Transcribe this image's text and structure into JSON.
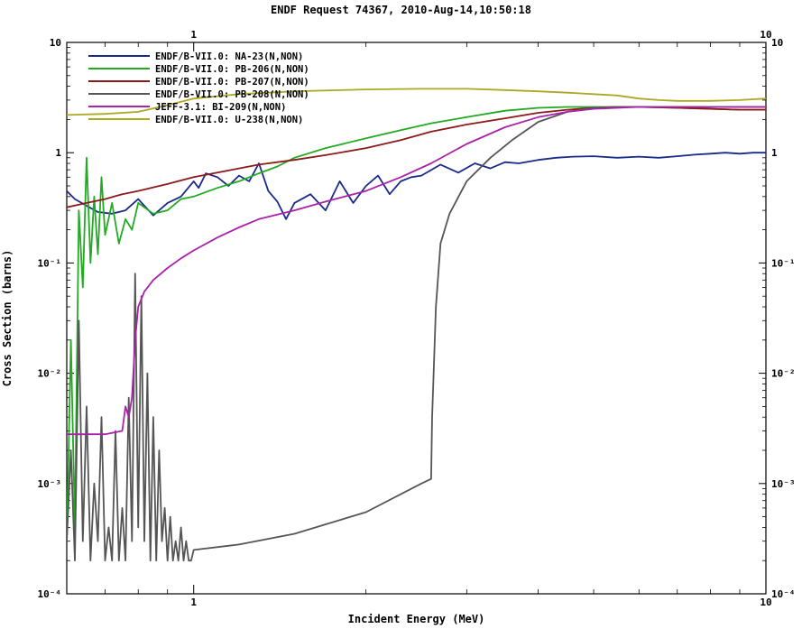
{
  "chart_data": {
    "type": "line",
    "title": "ENDF Request 74367, 2010-Aug-14,10:50:18",
    "xlabel": "Incident Energy (MeV)",
    "ylabel": "Cross Section (barns)",
    "xscale": "log",
    "yscale": "log",
    "xlim": [
      0.6,
      10
    ],
    "ylim": [
      0.0001,
      10
    ],
    "x_tick_labels": [
      "1",
      "10"
    ],
    "y_tick_labels": [
      "10",
      "1",
      "10⁻¹",
      "10⁻²",
      "10⁻³",
      "10⁻⁴"
    ],
    "legend_position": "top-left",
    "series": [
      {
        "name": "ENDF/B-VII.0: NA-23(N,NON)",
        "color": "#1a2a8c",
        "x": [
          0.6,
          0.62,
          0.65,
          0.68,
          0.72,
          0.76,
          0.8,
          0.85,
          0.9,
          0.95,
          1.0,
          1.02,
          1.05,
          1.1,
          1.15,
          1.2,
          1.25,
          1.3,
          1.35,
          1.4,
          1.45,
          1.5,
          1.6,
          1.7,
          1.8,
          1.9,
          2.0,
          2.1,
          2.2,
          2.3,
          2.4,
          2.5,
          2.7,
          2.9,
          3.1,
          3.3,
          3.5,
          3.7,
          4.0,
          4.3,
          4.6,
          5.0,
          5.5,
          6.0,
          6.5,
          7.0,
          7.5,
          8.0,
          8.5,
          9.0,
          9.5,
          10.0
        ],
        "y": [
          0.45,
          0.38,
          0.33,
          0.29,
          0.28,
          0.3,
          0.38,
          0.27,
          0.35,
          0.4,
          0.55,
          0.48,
          0.65,
          0.6,
          0.5,
          0.62,
          0.55,
          0.8,
          0.45,
          0.36,
          0.25,
          0.35,
          0.42,
          0.3,
          0.55,
          0.35,
          0.5,
          0.62,
          0.42,
          0.55,
          0.6,
          0.62,
          0.78,
          0.66,
          0.8,
          0.72,
          0.82,
          0.8,
          0.86,
          0.9,
          0.92,
          0.93,
          0.9,
          0.92,
          0.9,
          0.93,
          0.96,
          0.98,
          1.0,
          0.98,
          1.0,
          1.0
        ]
      },
      {
        "name": "ENDF/B-VII.0: PB-206(N,NON)",
        "color": "#22aa22",
        "x": [
          0.6,
          0.61,
          0.62,
          0.63,
          0.64,
          0.65,
          0.66,
          0.67,
          0.68,
          0.69,
          0.7,
          0.72,
          0.74,
          0.76,
          0.78,
          0.8,
          0.85,
          0.9,
          0.95,
          1.0,
          1.1,
          1.2,
          1.3,
          1.4,
          1.5,
          1.7,
          2.0,
          2.3,
          2.6,
          3.0,
          3.5,
          4.0,
          4.5,
          5.0,
          6.0,
          7.0,
          8.0,
          9.0,
          10.0
        ],
        "y": [
          0.0003,
          0.02,
          0.0004,
          0.3,
          0.06,
          0.9,
          0.1,
          0.4,
          0.12,
          0.6,
          0.18,
          0.35,
          0.15,
          0.25,
          0.2,
          0.35,
          0.28,
          0.3,
          0.38,
          0.4,
          0.48,
          0.55,
          0.65,
          0.75,
          0.9,
          1.1,
          1.35,
          1.6,
          1.85,
          2.1,
          2.4,
          2.55,
          2.6,
          2.6,
          2.6,
          2.55,
          2.5,
          2.45,
          2.45
        ]
      },
      {
        "name": "ENDF/B-VII.0: PB-207(N,NON)",
        "color": "#8c1a1a",
        "x": [
          0.6,
          0.65,
          0.7,
          0.75,
          0.8,
          0.9,
          1.0,
          1.1,
          1.2,
          1.3,
          1.5,
          1.7,
          2.0,
          2.3,
          2.6,
          3.0,
          3.5,
          4.0,
          4.5,
          5.0,
          5.5,
          6.0,
          7.0,
          8.0,
          9.0,
          10.0
        ],
        "y": [
          0.32,
          0.35,
          0.38,
          0.42,
          0.45,
          0.52,
          0.6,
          0.66,
          0.72,
          0.78,
          0.86,
          0.95,
          1.1,
          1.3,
          1.55,
          1.8,
          2.05,
          2.3,
          2.45,
          2.55,
          2.6,
          2.6,
          2.55,
          2.5,
          2.45,
          2.45
        ]
      },
      {
        "name": "ENDF/B-VII.0: PB-208(N,NON)",
        "color": "#555555",
        "x": [
          0.6,
          0.61,
          0.62,
          0.63,
          0.64,
          0.65,
          0.66,
          0.67,
          0.68,
          0.69,
          0.7,
          0.71,
          0.72,
          0.73,
          0.74,
          0.75,
          0.76,
          0.77,
          0.78,
          0.79,
          0.8,
          0.81,
          0.82,
          0.83,
          0.84,
          0.85,
          0.86,
          0.87,
          0.88,
          0.89,
          0.9,
          0.91,
          0.92,
          0.93,
          0.94,
          0.95,
          0.96,
          0.97,
          0.98,
          0.99,
          1.0,
          1.2,
          1.5,
          2.0,
          2.5,
          2.6,
          2.61,
          2.65,
          2.7,
          2.8,
          3.0,
          3.3,
          3.6,
          4.0,
          4.5,
          5.0,
          5.5,
          6.0,
          7.0,
          8.0,
          9.0,
          10.0
        ],
        "y": [
          0.0003,
          0.002,
          0.0002,
          0.03,
          0.0003,
          0.005,
          0.0002,
          0.001,
          0.0003,
          0.004,
          0.0002,
          0.0004,
          0.0002,
          0.003,
          0.0002,
          0.0006,
          0.0002,
          0.006,
          0.0003,
          0.08,
          0.0004,
          0.05,
          0.0003,
          0.01,
          0.0002,
          0.004,
          0.0002,
          0.002,
          0.0003,
          0.0006,
          0.0002,
          0.0005,
          0.0002,
          0.0003,
          0.0002,
          0.0004,
          0.0002,
          0.0003,
          0.0002,
          0.0002,
          0.00025,
          0.00028,
          0.00035,
          0.00055,
          0.001,
          0.0011,
          0.004,
          0.04,
          0.15,
          0.28,
          0.55,
          0.9,
          1.3,
          1.9,
          2.35,
          2.55,
          2.6,
          2.6,
          2.6,
          2.6,
          2.6,
          2.6
        ]
      },
      {
        "name": "JEFF-3.1: BI-209(N,NON)",
        "color": "#aa22aa",
        "x": [
          0.6,
          0.65,
          0.7,
          0.75,
          0.76,
          0.77,
          0.78,
          0.79,
          0.8,
          0.82,
          0.85,
          0.9,
          0.95,
          1.0,
          1.1,
          1.2,
          1.3,
          1.5,
          1.7,
          2.0,
          2.3,
          2.6,
          3.0,
          3.5,
          4.0,
          4.5,
          5.0,
          6.0,
          7.0,
          8.0,
          9.0,
          10.0
        ],
        "y": [
          0.0028,
          0.0028,
          0.0028,
          0.003,
          0.005,
          0.004,
          0.006,
          0.02,
          0.04,
          0.055,
          0.07,
          0.09,
          0.11,
          0.13,
          0.17,
          0.21,
          0.25,
          0.3,
          0.36,
          0.45,
          0.6,
          0.8,
          1.2,
          1.7,
          2.1,
          2.35,
          2.5,
          2.6,
          2.6,
          2.6,
          2.6,
          2.6
        ]
      },
      {
        "name": "ENDF/B-VII.0: U-238(N,NON)",
        "color": "#aaaa22",
        "x": [
          0.6,
          0.7,
          0.8,
          0.9,
          1.0,
          1.2,
          1.5,
          2.0,
          2.5,
          3.0,
          3.5,
          4.0,
          4.5,
          5.0,
          5.5,
          6.0,
          6.5,
          7.0,
          8.0,
          9.0,
          10.0
        ],
        "y": [
          2.2,
          2.25,
          2.35,
          2.7,
          3.1,
          3.4,
          3.6,
          3.75,
          3.8,
          3.8,
          3.7,
          3.6,
          3.5,
          3.4,
          3.3,
          3.1,
          3.0,
          2.95,
          2.95,
          3.0,
          3.1
        ]
      }
    ]
  }
}
